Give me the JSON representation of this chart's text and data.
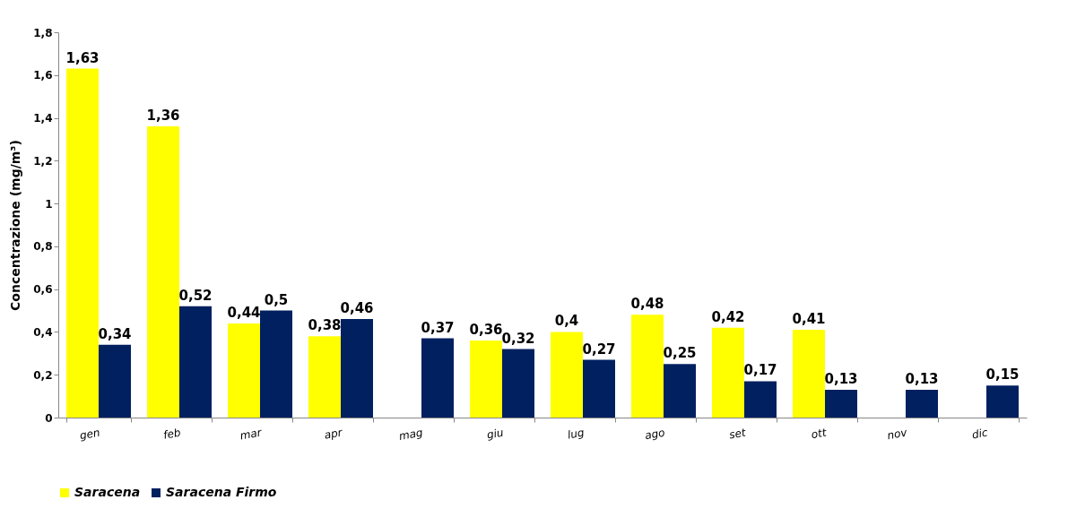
{
  "chart_data": {
    "type": "bar",
    "ylabel": "Concentrazione (mg/m³)",
    "categories": [
      "gen",
      "feb",
      "mar",
      "apr",
      "mag",
      "giu",
      "lug",
      "ago",
      "set",
      "ott",
      "nov",
      "dic"
    ],
    "series": [
      {
        "name": "Saracena",
        "color": "#ffff00",
        "values": [
          1.63,
          1.36,
          0.44,
          0.38,
          null,
          0.36,
          0.4,
          0.48,
          0.42,
          0.41,
          null,
          null
        ],
        "value_labels": [
          "1,63",
          "1,36",
          "0,44",
          "0,38",
          null,
          "0,36",
          "0,4",
          "0,48",
          "0,42",
          "0,41",
          null,
          null
        ]
      },
      {
        "name": "Saracena Firmo",
        "color": "#002060",
        "values": [
          0.34,
          0.52,
          0.5,
          0.46,
          0.37,
          0.32,
          0.27,
          0.25,
          0.17,
          0.13,
          0.13,
          0.15
        ],
        "value_labels": [
          "0,34",
          "0,52",
          "0,5",
          "0,46",
          "0,37",
          "0,32",
          "0,27",
          "0,25",
          "0,17",
          "0,13",
          "0,13",
          "0,15"
        ]
      }
    ],
    "ylim": [
      0,
      1.8
    ],
    "yticks": [
      0,
      {
        "value": 0.2,
        "label": "0,2"
      },
      {
        "value": 0.4,
        "label": "0,4"
      },
      {
        "value": 0.6,
        "label": "0,6"
      },
      {
        "value": 0.8,
        "label": "0,8"
      },
      1,
      {
        "value": 1.2,
        "label": "1,2"
      },
      {
        "value": 1.4,
        "label": "1,4"
      },
      {
        "value": 1.6,
        "label": "1,6"
      },
      {
        "value": 1.8,
        "label": "1,8"
      }
    ],
    "grid": false,
    "legend": "bottom"
  }
}
